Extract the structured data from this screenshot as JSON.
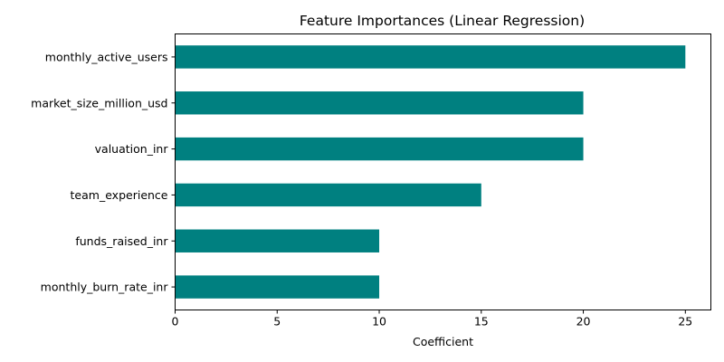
{
  "chart_data": {
    "type": "bar",
    "orientation": "horizontal",
    "title": "Feature Importances (Linear Regression)",
    "xlabel": "Coefficient",
    "ylabel": "",
    "categories": [
      "monthly_active_users",
      "market_size_million_usd",
      "valuation_inr",
      "team_experience",
      "funds_raised_inr",
      "monthly_burn_rate_inr"
    ],
    "values": [
      25,
      20,
      20,
      15,
      10,
      10
    ],
    "xlim": [
      0,
      26.25
    ],
    "xticks": [
      0,
      5,
      10,
      15,
      20,
      25
    ],
    "grid": false,
    "bar_color": "#008080"
  }
}
